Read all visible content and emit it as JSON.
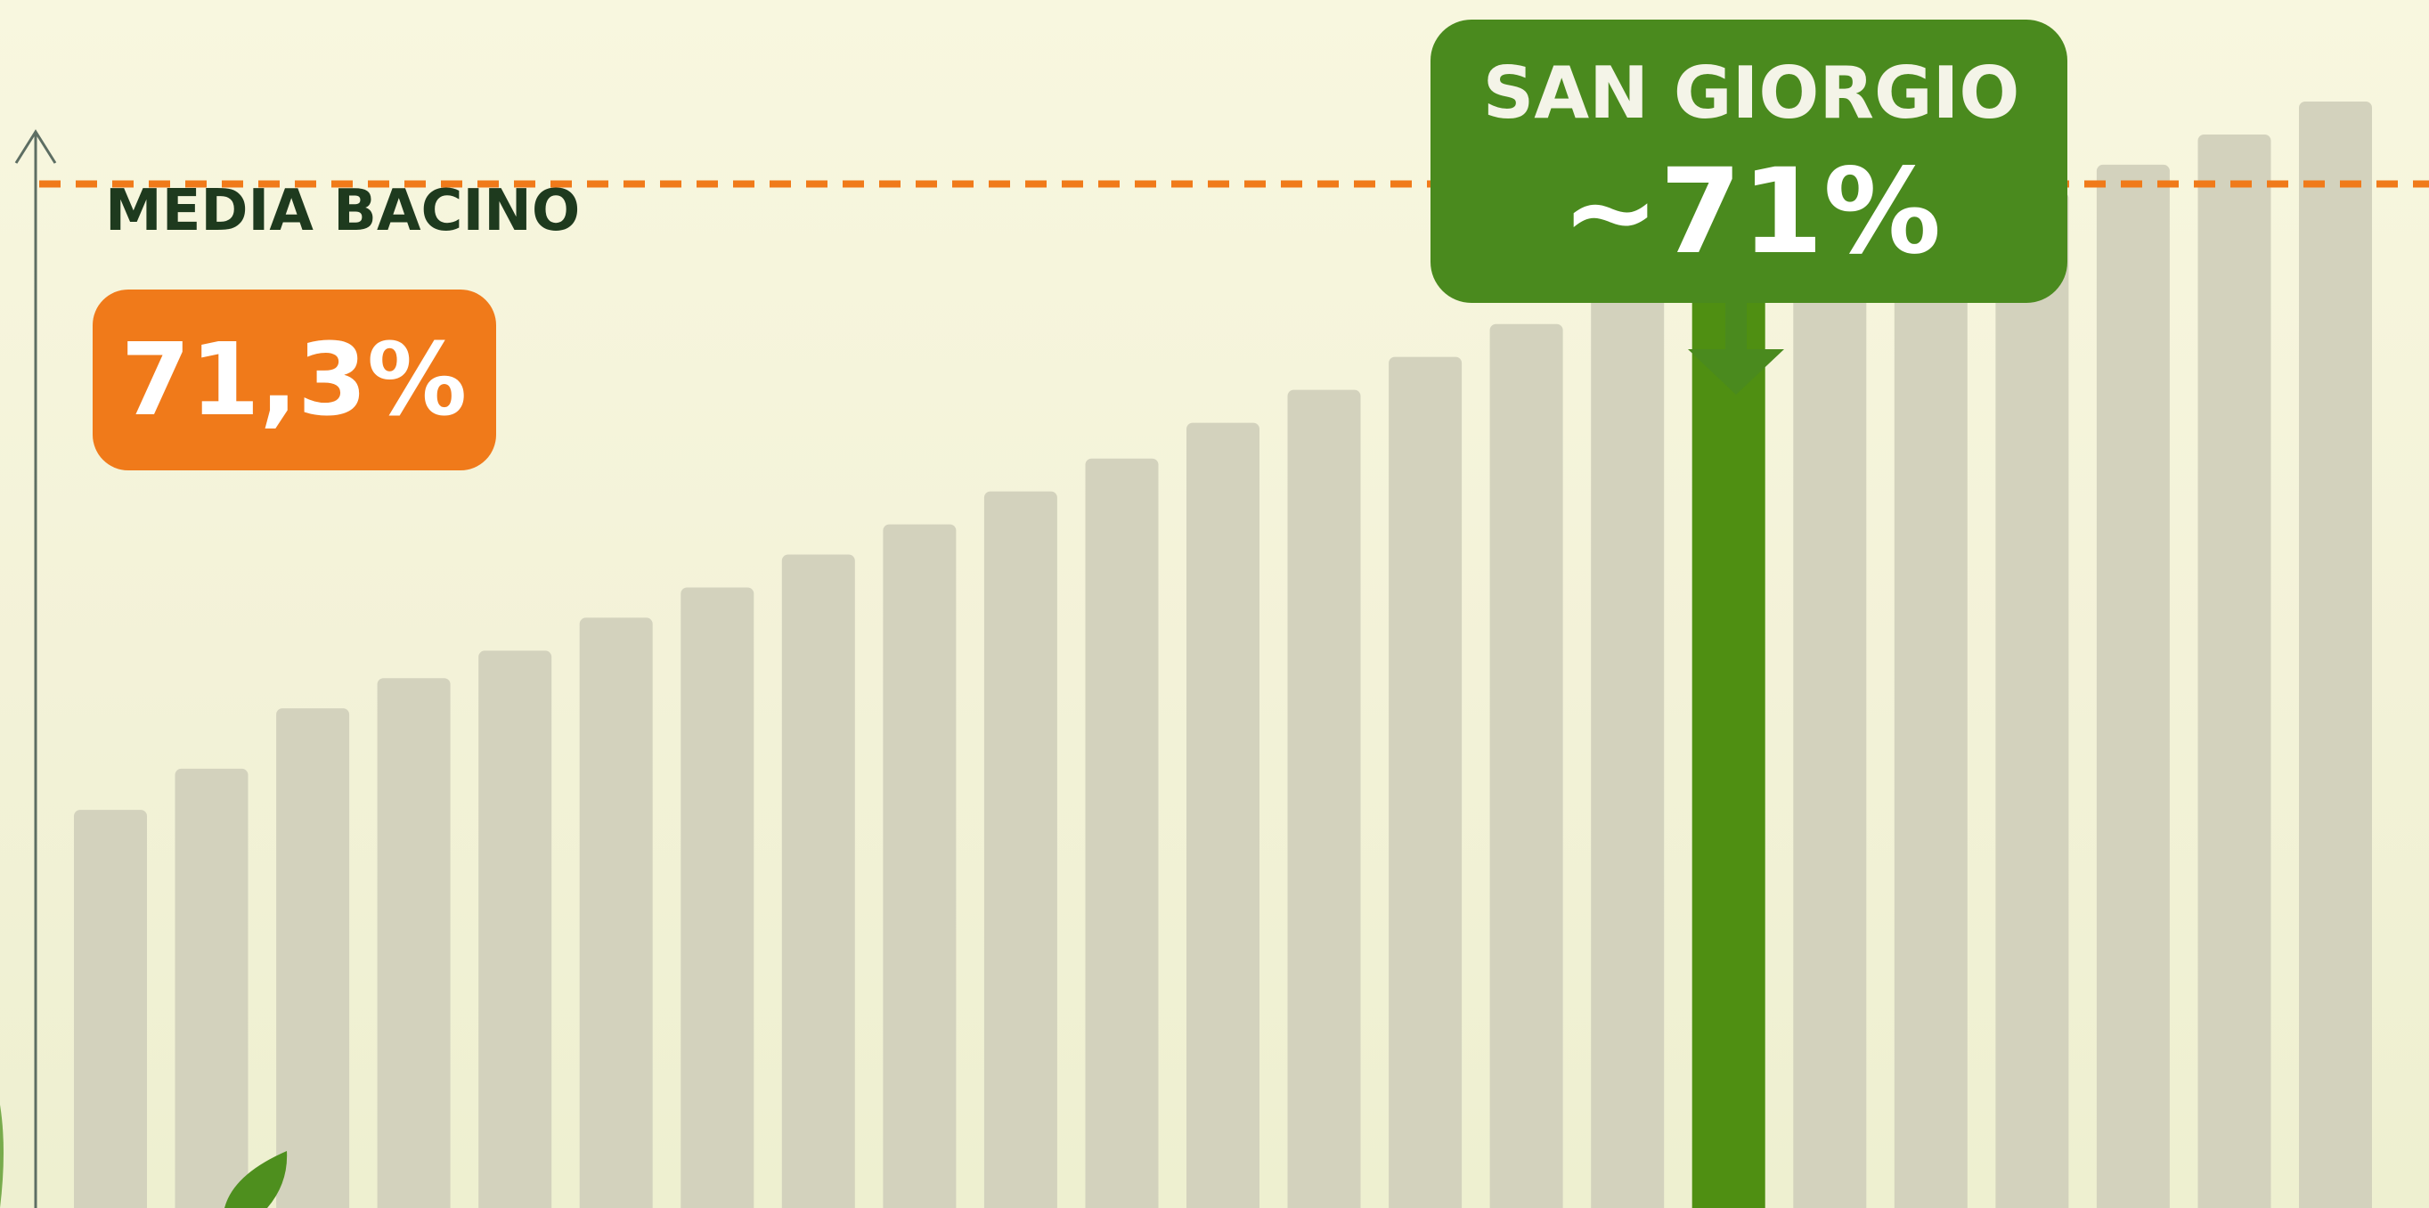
{
  "chart_data": {
    "type": "bar",
    "title": "",
    "xlabel": "",
    "ylabel": "",
    "ylim": [
      34,
      78
    ],
    "values": [
      48.5,
      50,
      52.2,
      53.3,
      54.3,
      55.5,
      56.6,
      57.8,
      58.9,
      60.1,
      61.3,
      62.6,
      63.8,
      65,
      66.2,
      67.3,
      71,
      69.1,
      70,
      71,
      72,
      73.1,
      74.3
    ],
    "highlight_index": 16,
    "reference_line": {
      "value": 71.3,
      "label_title": "MEDIA BACINO",
      "label_value": "71,3%"
    },
    "callout": {
      "title": "SAN GIORGIO",
      "value": "~71%"
    },
    "colors": {
      "bar": "#d3d2bd",
      "highlight": "#4f8f12",
      "reference": "#f07a1a",
      "callout_bg": "#4a8a1e",
      "reference_bg": "#f07a1a",
      "axis": "#5d6e63",
      "title_text": "#1e3a1e"
    }
  }
}
